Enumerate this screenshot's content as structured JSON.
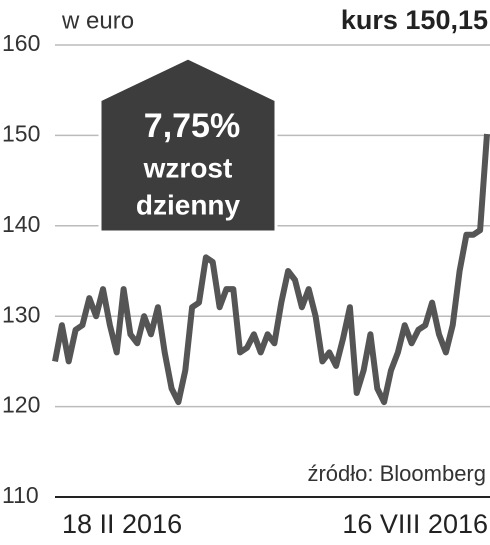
{
  "chart_data": {
    "type": "line",
    "subtitle": "w euro",
    "price_label": "kurs",
    "price_text": "150,15",
    "callout": [
      "7,75%",
      "wzrost",
      "dzienny"
    ],
    "source": "źródło: Bloomberg",
    "categories": [
      "18 II 2016",
      null,
      null,
      null,
      null,
      null,
      null,
      null,
      null,
      null,
      null,
      null,
      null,
      null,
      null,
      null,
      null,
      null,
      null,
      null,
      null,
      null,
      null,
      null,
      null,
      null,
      null,
      null,
      null,
      null,
      null,
      null,
      null,
      null,
      null,
      null,
      null,
      null,
      null,
      null,
      null,
      null,
      null,
      null,
      null,
      null,
      null,
      null,
      null,
      null,
      null,
      null,
      null,
      null,
      null,
      null,
      null,
      null,
      null,
      null,
      null,
      null,
      null,
      "16 VIII 2016"
    ],
    "series": [
      {
        "name": "kurs",
        "color": "#555555",
        "values": [
          125,
          129,
          125,
          128.5,
          129,
          132,
          130,
          133,
          129,
          126,
          133,
          128,
          127,
          130,
          128,
          131,
          126,
          122,
          120.5,
          124,
          131,
          131.5,
          136.5,
          136,
          131,
          133,
          133,
          126,
          126.5,
          128,
          126,
          128,
          127,
          131.5,
          135,
          134,
          131,
          133,
          130,
          125,
          126,
          124.5,
          127.5,
          131,
          121.5,
          124,
          128,
          122,
          120.5,
          124,
          126,
          129,
          127,
          128.5,
          129,
          131.5,
          128,
          126,
          129,
          135,
          139,
          139,
          139.5,
          150.15
        ]
      }
    ],
    "ylim": [
      110,
      160
    ],
    "yticks": [
      110,
      120,
      130,
      140,
      150,
      160
    ],
    "grid": true
  }
}
